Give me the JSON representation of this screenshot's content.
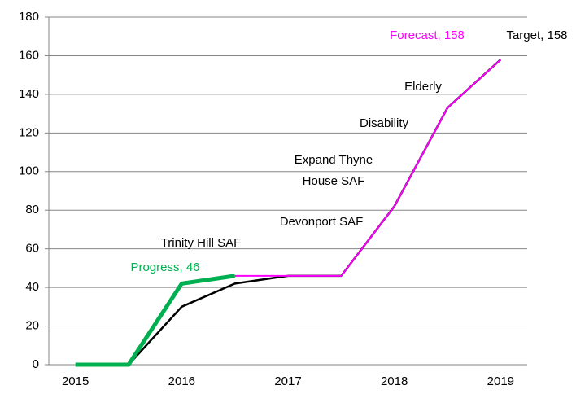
{
  "chart_data": {
    "type": "line",
    "x": [
      2015,
      2015.5,
      2016,
      2016.5,
      2017,
      2017.5,
      2018,
      2018.5,
      2019
    ],
    "series": [
      {
        "color": "#000000",
        "values": [
          null,
          0,
          30,
          42,
          46,
          46,
          82,
          133,
          158
        ]
      },
      {
        "color": "#ff00ff",
        "values": [
          null,
          null,
          null,
          46,
          46,
          46,
          82,
          133,
          158
        ]
      },
      {
        "color": "#00b050",
        "values": [
          0,
          0,
          42,
          46,
          null,
          null,
          null,
          null,
          null
        ]
      }
    ],
    "xlim": [
      2014.75,
      2019.25
    ],
    "xticks": [
      2015,
      2016,
      2017,
      2018,
      2019
    ],
    "ylim": [
      0,
      180
    ],
    "yticks": [
      0,
      20,
      40,
      60,
      80,
      100,
      120,
      140,
      160,
      180
    ],
    "grid": true,
    "annotations": [
      "Forecast, 158",
      "Target, 158",
      "Progress, 46",
      "Trinity Hill SAF",
      "Devonport SAF",
      "Expand Thyne",
      "House SAF",
      "Disability",
      "Elderly"
    ]
  }
}
